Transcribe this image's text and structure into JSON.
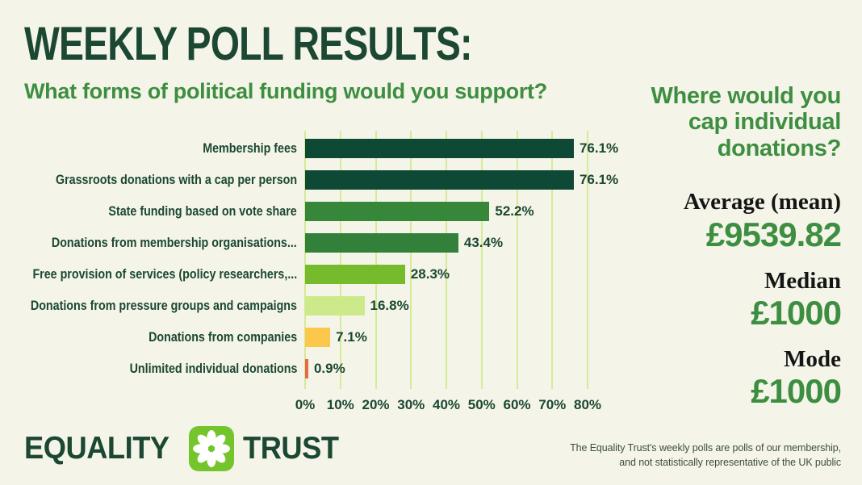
{
  "header": {
    "title": "WEEKLY POLL RESULTS:",
    "subtitle": "What forms of political funding would you support?"
  },
  "chart_data": {
    "type": "bar",
    "orientation": "horizontal",
    "title": "What forms of political funding would you support?",
    "categories": [
      "Membership fees",
      "Grassroots donations with a cap per person",
      "State funding based on vote share",
      "Donations from membership organisations...",
      "Free provision of services (policy researchers,...",
      "Donations from pressure groups and campaigns",
      "Donations from companies",
      "Unlimited individual donations"
    ],
    "values": [
      76.1,
      76.1,
      52.2,
      43.4,
      28.3,
      16.8,
      7.1,
      0.9
    ],
    "value_labels": [
      "76.1%",
      "76.1%",
      "52.2%",
      "43.4%",
      "28.3%",
      "16.8%",
      "7.1%",
      "0.9%"
    ],
    "bar_colors": [
      "#0e4936",
      "#0e4936",
      "#37873b",
      "#32803a",
      "#76bb2c",
      "#cdea8a",
      "#fbc84b",
      "#e7694b"
    ],
    "xlim": [
      0,
      80
    ],
    "ticks": [
      "0%",
      "10%",
      "20%",
      "30%",
      "40%",
      "50%",
      "60%",
      "70%",
      "80%"
    ],
    "grid": true,
    "gridline_color": "#d6eb96",
    "legend": "none"
  },
  "sidebar": {
    "question": "Where would you cap individual donations?",
    "stats": [
      {
        "label": "Average (mean)",
        "value": "£9539.82"
      },
      {
        "label": "Median",
        "value": "£1000"
      },
      {
        "label": "Mode",
        "value": "£1000"
      }
    ]
  },
  "footer": {
    "logo": {
      "word1": "EQUALITY",
      "word2": "TRUST",
      "icon": "flower-icon",
      "icon_color": "#74c52c"
    },
    "disclaimer_line1": "The Equality Trust's weekly polls are polls of our membership,",
    "disclaimer_line2": "and not statistically representative of the UK public"
  },
  "colors": {
    "background": "#f4f5e8",
    "dark_green": "#1b4733",
    "mid_green": "#3e8e41",
    "stat_label": "#151515",
    "disclaimer": "#3f4e41"
  }
}
